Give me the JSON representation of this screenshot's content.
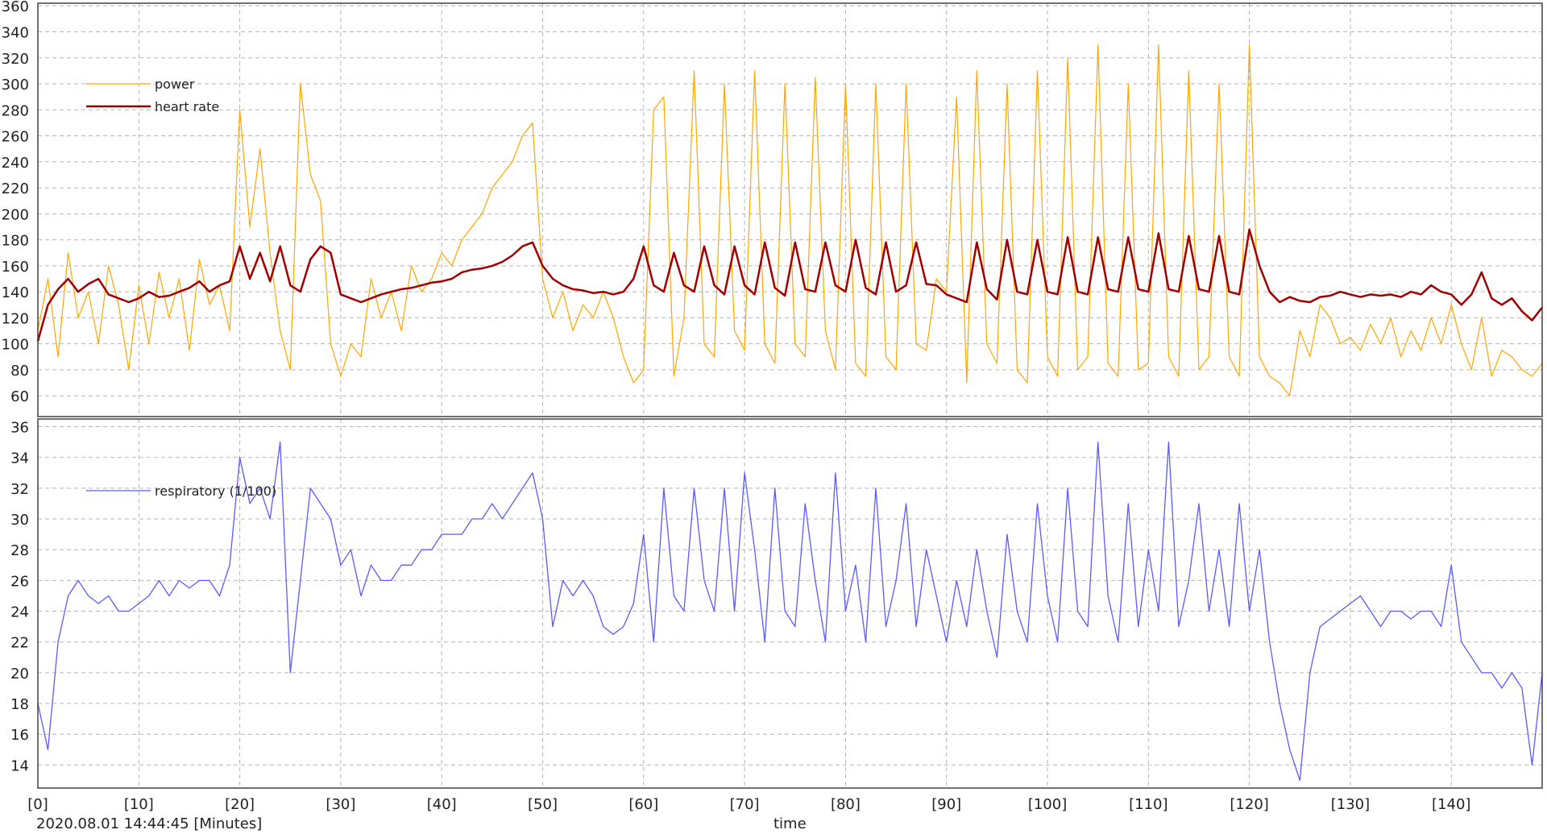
{
  "footer": {
    "start_time": "2020.08.01 14:44:45 [Minutes]",
    "xlabel": "time"
  },
  "colors": {
    "power": "#ffa500",
    "heart_rate": "#a00000",
    "respiratory": "#5a5aff",
    "grid": "#b5b5b5",
    "axis": "#404040"
  },
  "chart_data": [
    {
      "type": "line",
      "title": "",
      "xlabel": "time",
      "ylabel": "",
      "xlim": [
        0,
        149
      ],
      "ylim": [
        44,
        362
      ],
      "grid": true,
      "legend_position": "top-left",
      "x_ticks": [
        0,
        10,
        20,
        30,
        40,
        50,
        60,
        70,
        80,
        90,
        100,
        110,
        120,
        130,
        140
      ],
      "x_tick_labels": [
        "[0]",
        "[10]",
        "[20]",
        "[30]",
        "[40]",
        "[50]",
        "[60]",
        "[70]",
        "[80]",
        "[90]",
        "[100]",
        "[110]",
        "[120]",
        "[130]",
        "[140]"
      ],
      "y_ticks": [
        60,
        80,
        100,
        120,
        140,
        160,
        180,
        200,
        220,
        240,
        260,
        280,
        300,
        320,
        340,
        360
      ],
      "series": [
        {
          "name": "power",
          "x": [
            0,
            1,
            2,
            3,
            4,
            5,
            6,
            7,
            8,
            9,
            10,
            11,
            12,
            13,
            14,
            15,
            16,
            17,
            18,
            19,
            20,
            21,
            22,
            23,
            24,
            25,
            26,
            27,
            28,
            29,
            30,
            31,
            32,
            33,
            34,
            35,
            36,
            37,
            38,
            39,
            40,
            41,
            42,
            43,
            44,
            45,
            46,
            47,
            48,
            49,
            50,
            51,
            52,
            53,
            54,
            55,
            56,
            57,
            58,
            59,
            60,
            61,
            62,
            63,
            64,
            65,
            66,
            67,
            68,
            69,
            70,
            71,
            72,
            73,
            74,
            75,
            76,
            77,
            78,
            79,
            80,
            81,
            82,
            83,
            84,
            85,
            86,
            87,
            88,
            89,
            90,
            91,
            92,
            93,
            94,
            95,
            96,
            97,
            98,
            99,
            100,
            101,
            102,
            103,
            104,
            105,
            106,
            107,
            108,
            109,
            110,
            111,
            112,
            113,
            114,
            115,
            116,
            117,
            118,
            119,
            120,
            121,
            122,
            123,
            124,
            125,
            126,
            127,
            128,
            129,
            130,
            131,
            132,
            133,
            134,
            135,
            136,
            137,
            138,
            139,
            140,
            141,
            142,
            143,
            144,
            145,
            146,
            147,
            148,
            149
          ],
          "values": [
            110,
            150,
            90,
            170,
            120,
            140,
            100,
            160,
            130,
            80,
            145,
            100,
            155,
            120,
            150,
            95,
            165,
            130,
            145,
            110,
            280,
            190,
            250,
            170,
            110,
            80,
            300,
            230,
            210,
            100,
            75,
            100,
            90,
            150,
            120,
            140,
            110,
            160,
            140,
            150,
            170,
            160,
            180,
            190,
            200,
            220,
            230,
            240,
            260,
            270,
            150,
            120,
            140,
            110,
            130,
            120,
            140,
            120,
            90,
            70,
            80,
            280,
            290,
            75,
            120,
            310,
            100,
            90,
            300,
            110,
            95,
            310,
            100,
            85,
            300,
            100,
            90,
            305,
            110,
            80,
            300,
            85,
            75,
            300,
            90,
            80,
            300,
            100,
            95,
            150,
            140,
            290,
            70,
            310,
            100,
            85,
            300,
            80,
            70,
            310,
            90,
            75,
            320,
            80,
            90,
            330,
            85,
            75,
            300,
            80,
            85,
            330,
            90,
            75,
            310,
            80,
            90,
            300,
            90,
            75,
            330,
            90,
            75,
            70,
            60,
            110,
            90,
            130,
            120,
            100,
            105,
            95,
            115,
            100,
            120,
            90,
            110,
            95,
            120,
            100,
            130,
            100,
            80,
            120,
            75,
            95,
            90,
            80,
            75,
            85
          ]
        },
        {
          "name": "heart rate",
          "x": [
            0,
            1,
            2,
            3,
            4,
            5,
            6,
            7,
            8,
            9,
            10,
            11,
            12,
            13,
            14,
            15,
            16,
            17,
            18,
            19,
            20,
            21,
            22,
            23,
            24,
            25,
            26,
            27,
            28,
            29,
            30,
            31,
            32,
            33,
            34,
            35,
            36,
            37,
            38,
            39,
            40,
            41,
            42,
            43,
            44,
            45,
            46,
            47,
            48,
            49,
            50,
            51,
            52,
            53,
            54,
            55,
            56,
            57,
            58,
            59,
            60,
            61,
            62,
            63,
            64,
            65,
            66,
            67,
            68,
            69,
            70,
            71,
            72,
            73,
            74,
            75,
            76,
            77,
            78,
            79,
            80,
            81,
            82,
            83,
            84,
            85,
            86,
            87,
            88,
            89,
            90,
            91,
            92,
            93,
            94,
            95,
            96,
            97,
            98,
            99,
            100,
            101,
            102,
            103,
            104,
            105,
            106,
            107,
            108,
            109,
            110,
            111,
            112,
            113,
            114,
            115,
            116,
            117,
            118,
            119,
            120,
            121,
            122,
            123,
            124,
            125,
            126,
            127,
            128,
            129,
            130,
            131,
            132,
            133,
            134,
            135,
            136,
            137,
            138,
            139,
            140,
            141,
            142,
            143,
            144,
            145,
            146,
            147,
            148,
            149
          ],
          "values": [
            102,
            130,
            142,
            150,
            140,
            146,
            150,
            138,
            135,
            132,
            135,
            140,
            136,
            137,
            140,
            143,
            148,
            140,
            145,
            148,
            175,
            150,
            170,
            148,
            175,
            145,
            140,
            165,
            175,
            170,
            138,
            135,
            132,
            135,
            138,
            140,
            142,
            143,
            145,
            147,
            148,
            150,
            155,
            157,
            158,
            160,
            163,
            168,
            175,
            178,
            160,
            150,
            145,
            142,
            141,
            139,
            140,
            138,
            140,
            150,
            175,
            145,
            140,
            170,
            145,
            140,
            175,
            145,
            138,
            175,
            145,
            138,
            178,
            143,
            137,
            178,
            142,
            140,
            178,
            145,
            140,
            180,
            143,
            138,
            178,
            140,
            145,
            178,
            146,
            145,
            138,
            135,
            132,
            178,
            142,
            134,
            180,
            140,
            138,
            180,
            140,
            138,
            182,
            140,
            138,
            182,
            142,
            140,
            182,
            142,
            140,
            185,
            142,
            140,
            183,
            142,
            140,
            183,
            140,
            138,
            188,
            160,
            140,
            132,
            136,
            133,
            132,
            136,
            137,
            140,
            138,
            136,
            138,
            137,
            138,
            136,
            140,
            138,
            145,
            140,
            138,
            130,
            138,
            155,
            135,
            130,
            135,
            125,
            118,
            128
          ]
        }
      ]
    },
    {
      "type": "line",
      "title": "",
      "xlabel": "time",
      "ylabel": "",
      "xlim": [
        0,
        149
      ],
      "ylim": [
        12.5,
        36.5
      ],
      "grid": true,
      "legend_position": "top-left",
      "x_ticks": [
        0,
        10,
        20,
        30,
        40,
        50,
        60,
        70,
        80,
        90,
        100,
        110,
        120,
        130,
        140
      ],
      "x_tick_labels": [
        "[0]",
        "[10]",
        "[20]",
        "[30]",
        "[40]",
        "[50]",
        "[60]",
        "[70]",
        "[80]",
        "[90]",
        "[100]",
        "[110]",
        "[120]",
        "[130]",
        "[140]"
      ],
      "y_ticks": [
        14,
        16,
        18,
        20,
        22,
        24,
        26,
        28,
        30,
        32,
        34,
        36
      ],
      "series": [
        {
          "name": "respiratory (1/100)",
          "x": [
            0,
            1,
            2,
            3,
            4,
            5,
            6,
            7,
            8,
            9,
            10,
            11,
            12,
            13,
            14,
            15,
            16,
            17,
            18,
            19,
            20,
            21,
            22,
            23,
            24,
            25,
            26,
            27,
            28,
            29,
            30,
            31,
            32,
            33,
            34,
            35,
            36,
            37,
            38,
            39,
            40,
            41,
            42,
            43,
            44,
            45,
            46,
            47,
            48,
            49,
            50,
            51,
            52,
            53,
            54,
            55,
            56,
            57,
            58,
            59,
            60,
            61,
            62,
            63,
            64,
            65,
            66,
            67,
            68,
            69,
            70,
            71,
            72,
            73,
            74,
            75,
            76,
            77,
            78,
            79,
            80,
            81,
            82,
            83,
            84,
            85,
            86,
            87,
            88,
            89,
            90,
            91,
            92,
            93,
            94,
            95,
            96,
            97,
            98,
            99,
            100,
            101,
            102,
            103,
            104,
            105,
            106,
            107,
            108,
            109,
            110,
            111,
            112,
            113,
            114,
            115,
            116,
            117,
            118,
            119,
            120,
            121,
            122,
            123,
            124,
            125,
            126,
            127,
            128,
            129,
            130,
            131,
            132,
            133,
            134,
            135,
            136,
            137,
            138,
            139,
            140,
            141,
            142,
            143,
            144,
            145,
            146,
            147,
            148,
            149
          ],
          "values": [
            18,
            15,
            22,
            25,
            26,
            25,
            24.5,
            25,
            24,
            24,
            24.5,
            25,
            26,
            25,
            26,
            25.5,
            26,
            26,
            25,
            27,
            34,
            31,
            32,
            30,
            35,
            20,
            26,
            32,
            31,
            30,
            27,
            28,
            25,
            27,
            26,
            26,
            27,
            27,
            28,
            28,
            29,
            29,
            29,
            30,
            30,
            31,
            30,
            31,
            32,
            33,
            30,
            23,
            26,
            25,
            26,
            25,
            23,
            22.5,
            23,
            24.5,
            29,
            22,
            32,
            25,
            24,
            32,
            26,
            24,
            32,
            24,
            33,
            28,
            22,
            32,
            24,
            23,
            31,
            26,
            22,
            33,
            24,
            27,
            22,
            32,
            23,
            26,
            31,
            23,
            28,
            25,
            22,
            26,
            23,
            28,
            24,
            21,
            29,
            24,
            22,
            31,
            25,
            22,
            32,
            24,
            23,
            35,
            25,
            22,
            31,
            23,
            28,
            24,
            35,
            23,
            26,
            31,
            24,
            28,
            23,
            31,
            24,
            28,
            22,
            18,
            15,
            13,
            20,
            23,
            23.5,
            24,
            24.5,
            25,
            24,
            23,
            24,
            24,
            23.5,
            24,
            24,
            23,
            27,
            22,
            21,
            20,
            20,
            19,
            20,
            19,
            14,
            20
          ]
        }
      ]
    }
  ]
}
